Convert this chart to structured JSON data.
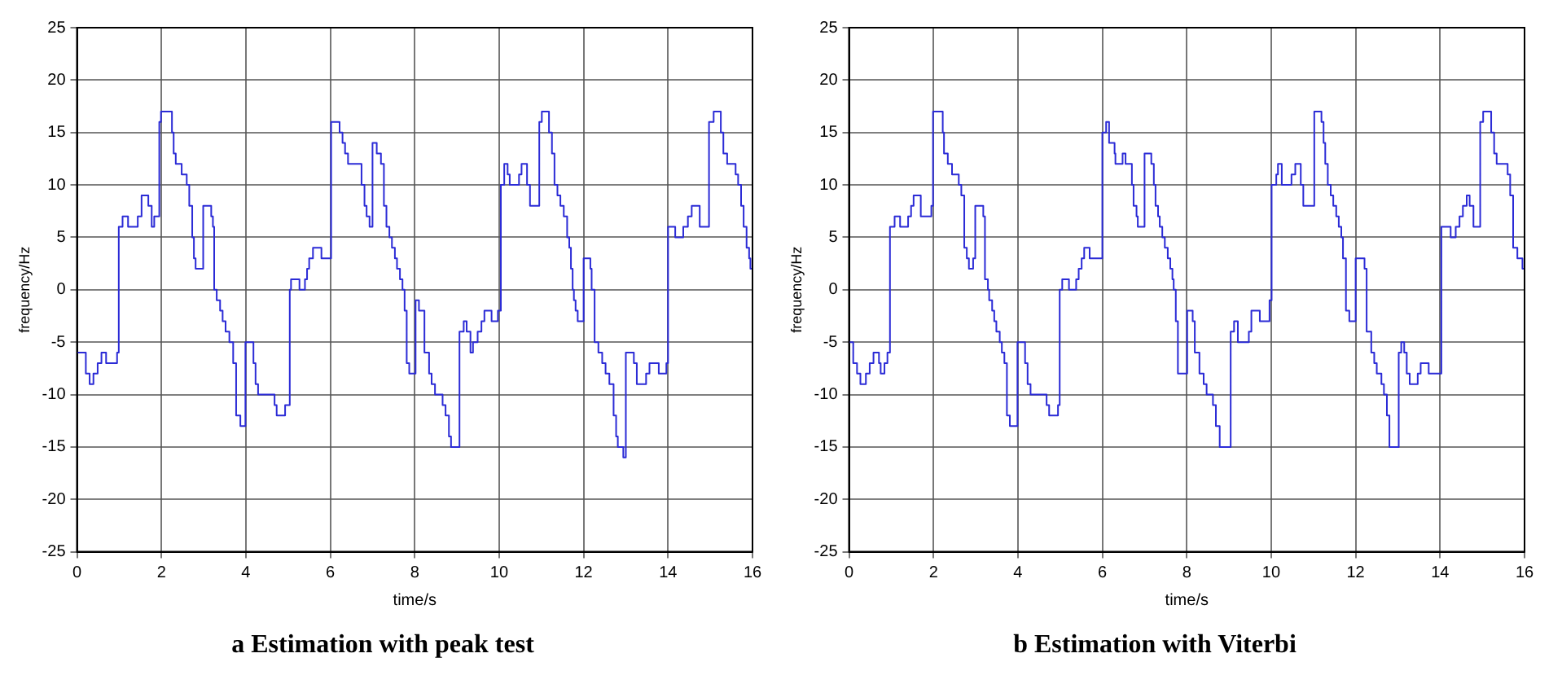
{
  "chart_data": [
    {
      "type": "step",
      "title": "a Estimation with peak test",
      "xlabel": "time/s",
      "ylabel": "frequency/Hz",
      "xlim": [
        0,
        16
      ],
      "ylim": [
        -25,
        25
      ],
      "xticks": [
        0,
        2,
        4,
        6,
        8,
        10,
        12,
        14,
        16
      ],
      "yticks": [
        -25,
        -20,
        -15,
        -10,
        -5,
        0,
        5,
        10,
        15,
        20,
        25
      ],
      "grid": true,
      "series": [
        {
          "color": "#2b2bd6",
          "x": [
            0,
            0.21,
            0.3,
            0.39,
            0.49,
            0.58,
            0.69,
            0.95,
            0.99,
            1.08,
            1.21,
            1.44,
            1.53,
            1.69,
            1.77,
            1.83,
            1.95,
            1.99,
            2.25,
            2.29,
            2.34,
            2.48,
            2.6,
            2.66,
            2.73,
            2.77,
            2.81,
            2.99,
            3.18,
            3.22,
            3.25,
            3.31,
            3.39,
            3.45,
            3.52,
            3.61,
            3.7,
            3.77,
            3.87,
            3.99,
            4.18,
            4.23,
            4.29,
            4.68,
            4.73,
            4.93,
            5.04,
            5.07,
            5.27,
            5.4,
            5.45,
            5.5,
            5.59,
            5.79,
            6.02,
            6.22,
            6.29,
            6.35,
            6.42,
            6.74,
            6.81,
            6.86,
            6.93,
            7,
            7.1,
            7.2,
            7.27,
            7.33,
            7.4,
            7.46,
            7.53,
            7.58,
            7.65,
            7.71,
            7.76,
            7.81,
            7.87,
            8.02,
            8.1,
            8.23,
            8.34,
            8.4,
            8.48,
            8.66,
            8.73,
            8.81,
            8.86,
            9.06,
            9.16,
            9.23,
            9.32,
            9.38,
            9.49,
            9.58,
            9.65,
            9.82,
            9.97,
            10.04,
            10.12,
            10.2,
            10.25,
            10.47,
            10.53,
            10.66,
            10.73,
            10.95,
            11.01,
            11.18,
            11.25,
            11.31,
            11.38,
            11.45,
            11.53,
            11.61,
            11.66,
            11.7,
            11.74,
            11.77,
            11.81,
            11.86,
            12,
            12.16,
            12.19,
            12.26,
            12.35,
            12.44,
            12.52,
            12.61,
            12.71,
            12.77,
            12.81,
            12.94,
            13,
            13.19,
            13.26,
            13.48,
            13.56,
            13.78,
            13.96,
            14,
            14.17,
            14.36,
            14.47,
            14.56,
            14.75,
            14.97,
            15.08,
            15.25,
            15.31,
            15.4,
            15.6,
            15.66,
            15.73,
            15.79,
            15.86,
            15.92,
            15.95,
            16
          ],
          "values": [
            -6,
            -8,
            -9,
            -8,
            -7,
            -6,
            -7,
            -6,
            6,
            7,
            6,
            7,
            9,
            8,
            6,
            7,
            16,
            17,
            15,
            13,
            12,
            11,
            10,
            8,
            5,
            3,
            2,
            8,
            7,
            6,
            0,
            -1,
            -2,
            -3,
            -4,
            -5,
            -7,
            -12,
            -13,
            -5,
            -7,
            -9,
            -10,
            -11,
            -12,
            -11,
            0,
            1,
            0,
            1,
            2,
            3,
            4,
            3,
            16,
            15,
            14,
            13,
            12,
            10,
            8,
            7,
            6,
            14,
            13,
            12,
            8,
            6,
            5,
            4,
            3,
            2,
            1,
            0,
            -2,
            -7,
            -8,
            -1,
            -2,
            -6,
            -8,
            -9,
            -10,
            -11,
            -12,
            -14,
            -15,
            -4,
            -3,
            -4,
            -6,
            -5,
            -4,
            -3,
            -2,
            -3,
            -2,
            10,
            12,
            11,
            10,
            11,
            12,
            10,
            8,
            16,
            17,
            15,
            13,
            10,
            9,
            8,
            7,
            5,
            4,
            2,
            0,
            -1,
            -2,
            -3,
            3,
            2,
            0,
            -5,
            -6,
            -7,
            -8,
            -9,
            -12,
            -14,
            -15,
            -16,
            -6,
            -7,
            -9,
            -8,
            -7,
            -8,
            -7,
            6,
            5,
            6,
            7,
            8,
            6,
            16,
            17,
            15,
            13,
            12,
            11,
            10,
            8,
            6,
            4,
            3,
            2,
            2
          ]
        }
      ]
    },
    {
      "type": "step",
      "title": "b Estimation with Viterbi",
      "xlabel": "time/s",
      "ylabel": "frequency/Hz",
      "xlim": [
        0,
        16
      ],
      "ylim": [
        -25,
        25
      ],
      "xticks": [
        0,
        2,
        4,
        6,
        8,
        10,
        12,
        14,
        16
      ],
      "yticks": [
        -25,
        -20,
        -15,
        -10,
        -5,
        0,
        5,
        10,
        15,
        20,
        25
      ],
      "grid": true,
      "series": [
        {
          "color": "#2b2bd6",
          "x": [
            0,
            0.1,
            0.19,
            0.27,
            0.4,
            0.49,
            0.58,
            0.71,
            0.75,
            0.84,
            0.91,
            0.97,
            1.08,
            1.21,
            1.4,
            1.47,
            1.53,
            1.7,
            1.95,
            1.99,
            2.22,
            2.25,
            2.34,
            2.44,
            2.6,
            2.66,
            2.73,
            2.79,
            2.84,
            2.94,
            2.99,
            3.18,
            3.22,
            3.29,
            3.32,
            3.39,
            3.44,
            3.49,
            3.57,
            3.62,
            3.68,
            3.74,
            3.81,
            3.99,
            4.17,
            4.23,
            4.3,
            4.68,
            4.74,
            4.95,
            4.99,
            5.05,
            5.21,
            5.38,
            5.44,
            5.51,
            5.57,
            5.7,
            6,
            6.09,
            6.16,
            6.29,
            6.31,
            6.48,
            6.55,
            6.7,
            6.74,
            6.81,
            6.84,
            7,
            7.16,
            7.22,
            7.26,
            7.32,
            7.36,
            7.42,
            7.48,
            7.55,
            7.61,
            7.66,
            7.69,
            7.74,
            7.79,
            8.01,
            8.14,
            8.19,
            8.3,
            8.4,
            8.47,
            8.62,
            8.69,
            8.78,
            9.04,
            9.12,
            9.21,
            9.47,
            9.53,
            9.73,
            9.96,
            10.01,
            10.12,
            10.16,
            10.25,
            10.48,
            10.57,
            10.7,
            10.76,
            11.02,
            11.19,
            11.24,
            11.28,
            11.34,
            11.41,
            11.47,
            11.54,
            11.6,
            11.66,
            11.7,
            11.77,
            11.85,
            12,
            12.21,
            12.26,
            12.37,
            12.44,
            12.5,
            12.61,
            12.67,
            12.74,
            12.8,
            13.02,
            13.08,
            13.15,
            13.21,
            13.28,
            13.47,
            13.54,
            13.73,
            14.03,
            14.25,
            14.37,
            14.46,
            14.54,
            14.63,
            14.7,
            14.79,
            14.95,
            15.02,
            15.21,
            15.28,
            15.34,
            15.6,
            15.66,
            15.73,
            15.83,
            15.95,
            16
          ],
          "values": [
            -5,
            -7,
            -8,
            -9,
            -8,
            -7,
            -6,
            -7,
            -8,
            -7,
            -6,
            6,
            7,
            6,
            7,
            8,
            9,
            7,
            8,
            17,
            15,
            13,
            12,
            11,
            10,
            9,
            4,
            3,
            2,
            3,
            8,
            7,
            1,
            0,
            -1,
            -2,
            -3,
            -4,
            -5,
            -6,
            -7,
            -12,
            -13,
            -5,
            -7,
            -9,
            -10,
            -11,
            -12,
            -11,
            0,
            1,
            0,
            1,
            2,
            3,
            4,
            3,
            15,
            16,
            14,
            13,
            12,
            13,
            12,
            10,
            8,
            7,
            6,
            13,
            12,
            10,
            8,
            7,
            6,
            5,
            4,
            3,
            2,
            1,
            0,
            -3,
            -8,
            -2,
            -3,
            -6,
            -8,
            -9,
            -10,
            -11,
            -13,
            -15,
            -4,
            -3,
            -5,
            -4,
            -2,
            -3,
            -1,
            10,
            11,
            12,
            10,
            11,
            12,
            10,
            8,
            17,
            16,
            14,
            12,
            10,
            9,
            8,
            7,
            6,
            5,
            3,
            -2,
            -3,
            3,
            2,
            -4,
            -6,
            -7,
            -8,
            -9,
            -10,
            -12,
            -15,
            -6,
            -5,
            -6,
            -8,
            -9,
            -8,
            -7,
            -8,
            6,
            5,
            6,
            7,
            8,
            9,
            8,
            6,
            16,
            17,
            15,
            13,
            12,
            11,
            9,
            4,
            3,
            2,
            2
          ]
        }
      ]
    }
  ]
}
